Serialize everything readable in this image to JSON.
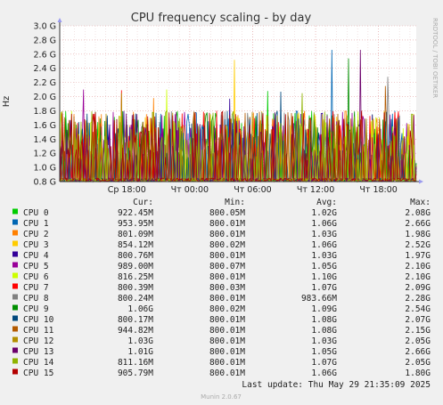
{
  "chart_data": {
    "type": "line",
    "title": "CPU frequency scaling - by day",
    "ylabel": "Hz",
    "ylim": [
      0.8,
      3.0
    ],
    "y_ticks": [
      "0.8 G",
      "1.0 G",
      "1.2 G",
      "1.4 G",
      "1.6 G",
      "1.8 G",
      "2.0 G",
      "2.2 G",
      "2.4 G",
      "2.6 G",
      "2.8 G",
      "3.0 G"
    ],
    "y_tick_values": [
      0.8,
      1.0,
      1.2,
      1.4,
      1.6,
      1.8,
      2.0,
      2.2,
      2.4,
      2.6,
      2.8,
      3.0
    ],
    "x_ticks": [
      "Ср 18:00",
      "Чт 00:00",
      "Чт 06:00",
      "Чт 12:00",
      "Чт 18:00"
    ],
    "x_tick_positions_hours": [
      18,
      24,
      30,
      36,
      42
    ],
    "x_range_hours": [
      11.6,
      45.6
    ],
    "grid": true,
    "watermark": "RRDTOOL / TOBI OETIKER",
    "legend_headers": {
      "cur": "Cur:",
      "min": "Min:",
      "avg": "Avg:",
      "max": "Max:"
    },
    "series": [
      {
        "name": "CPU 0",
        "color": "#00cc00",
        "cur": "922.45M",
        "min": "800.05M",
        "avg": "1.02G",
        "max": "2.08G"
      },
      {
        "name": "CPU 1",
        "color": "#0066b3",
        "cur": "953.95M",
        "min": "800.01M",
        "avg": "1.06G",
        "max": "2.66G"
      },
      {
        "name": "CPU 2",
        "color": "#ff8000",
        "cur": "801.09M",
        "min": "800.01M",
        "avg": "1.03G",
        "max": "1.98G"
      },
      {
        "name": "CPU 3",
        "color": "#ffcc00",
        "cur": "854.12M",
        "min": "800.02M",
        "avg": "1.06G",
        "max": "2.52G"
      },
      {
        "name": "CPU 4",
        "color": "#330099",
        "cur": "800.76M",
        "min": "800.01M",
        "avg": "1.03G",
        "max": "1.97G"
      },
      {
        "name": "CPU 5",
        "color": "#990099",
        "cur": "989.00M",
        "min": "800.07M",
        "avg": "1.05G",
        "max": "2.10G"
      },
      {
        "name": "CPU 6",
        "color": "#ccff00",
        "cur": "816.25M",
        "min": "800.01M",
        "avg": "1.10G",
        "max": "2.10G"
      },
      {
        "name": "CPU 7",
        "color": "#ff0000",
        "cur": "800.39M",
        "min": "800.03M",
        "avg": "1.07G",
        "max": "2.09G"
      },
      {
        "name": "CPU 8",
        "color": "#808080",
        "cur": "800.24M",
        "min": "800.01M",
        "avg": "983.66M",
        "max": "2.28G"
      },
      {
        "name": "CPU 9",
        "color": "#008f00",
        "cur": "1.06G",
        "min": "800.02M",
        "avg": "1.09G",
        "max": "2.54G"
      },
      {
        "name": "CPU 10",
        "color": "#00487d",
        "cur": "800.17M",
        "min": "800.01M",
        "avg": "1.08G",
        "max": "2.07G"
      },
      {
        "name": "CPU 11",
        "color": "#b35a00",
        "cur": "944.82M",
        "min": "800.01M",
        "avg": "1.08G",
        "max": "2.15G"
      },
      {
        "name": "CPU 12",
        "color": "#b38f00",
        "cur": "1.03G",
        "min": "800.01M",
        "avg": "1.03G",
        "max": "2.05G"
      },
      {
        "name": "CPU 13",
        "color": "#6b006b",
        "cur": "1.01G",
        "min": "800.01M",
        "avg": "1.05G",
        "max": "2.66G"
      },
      {
        "name": "CPU 14",
        "color": "#8fb300",
        "cur": "811.16M",
        "min": "800.01M",
        "avg": "1.07G",
        "max": "2.05G"
      },
      {
        "name": "CPU 15",
        "color": "#b30000",
        "cur": "905.79M",
        "min": "800.01M",
        "avg": "1.06G",
        "max": "1.80G"
      }
    ],
    "last_update": "Last update: Thu May 29 21:35:09 2025",
    "footer": "Munin 2.0.67"
  }
}
